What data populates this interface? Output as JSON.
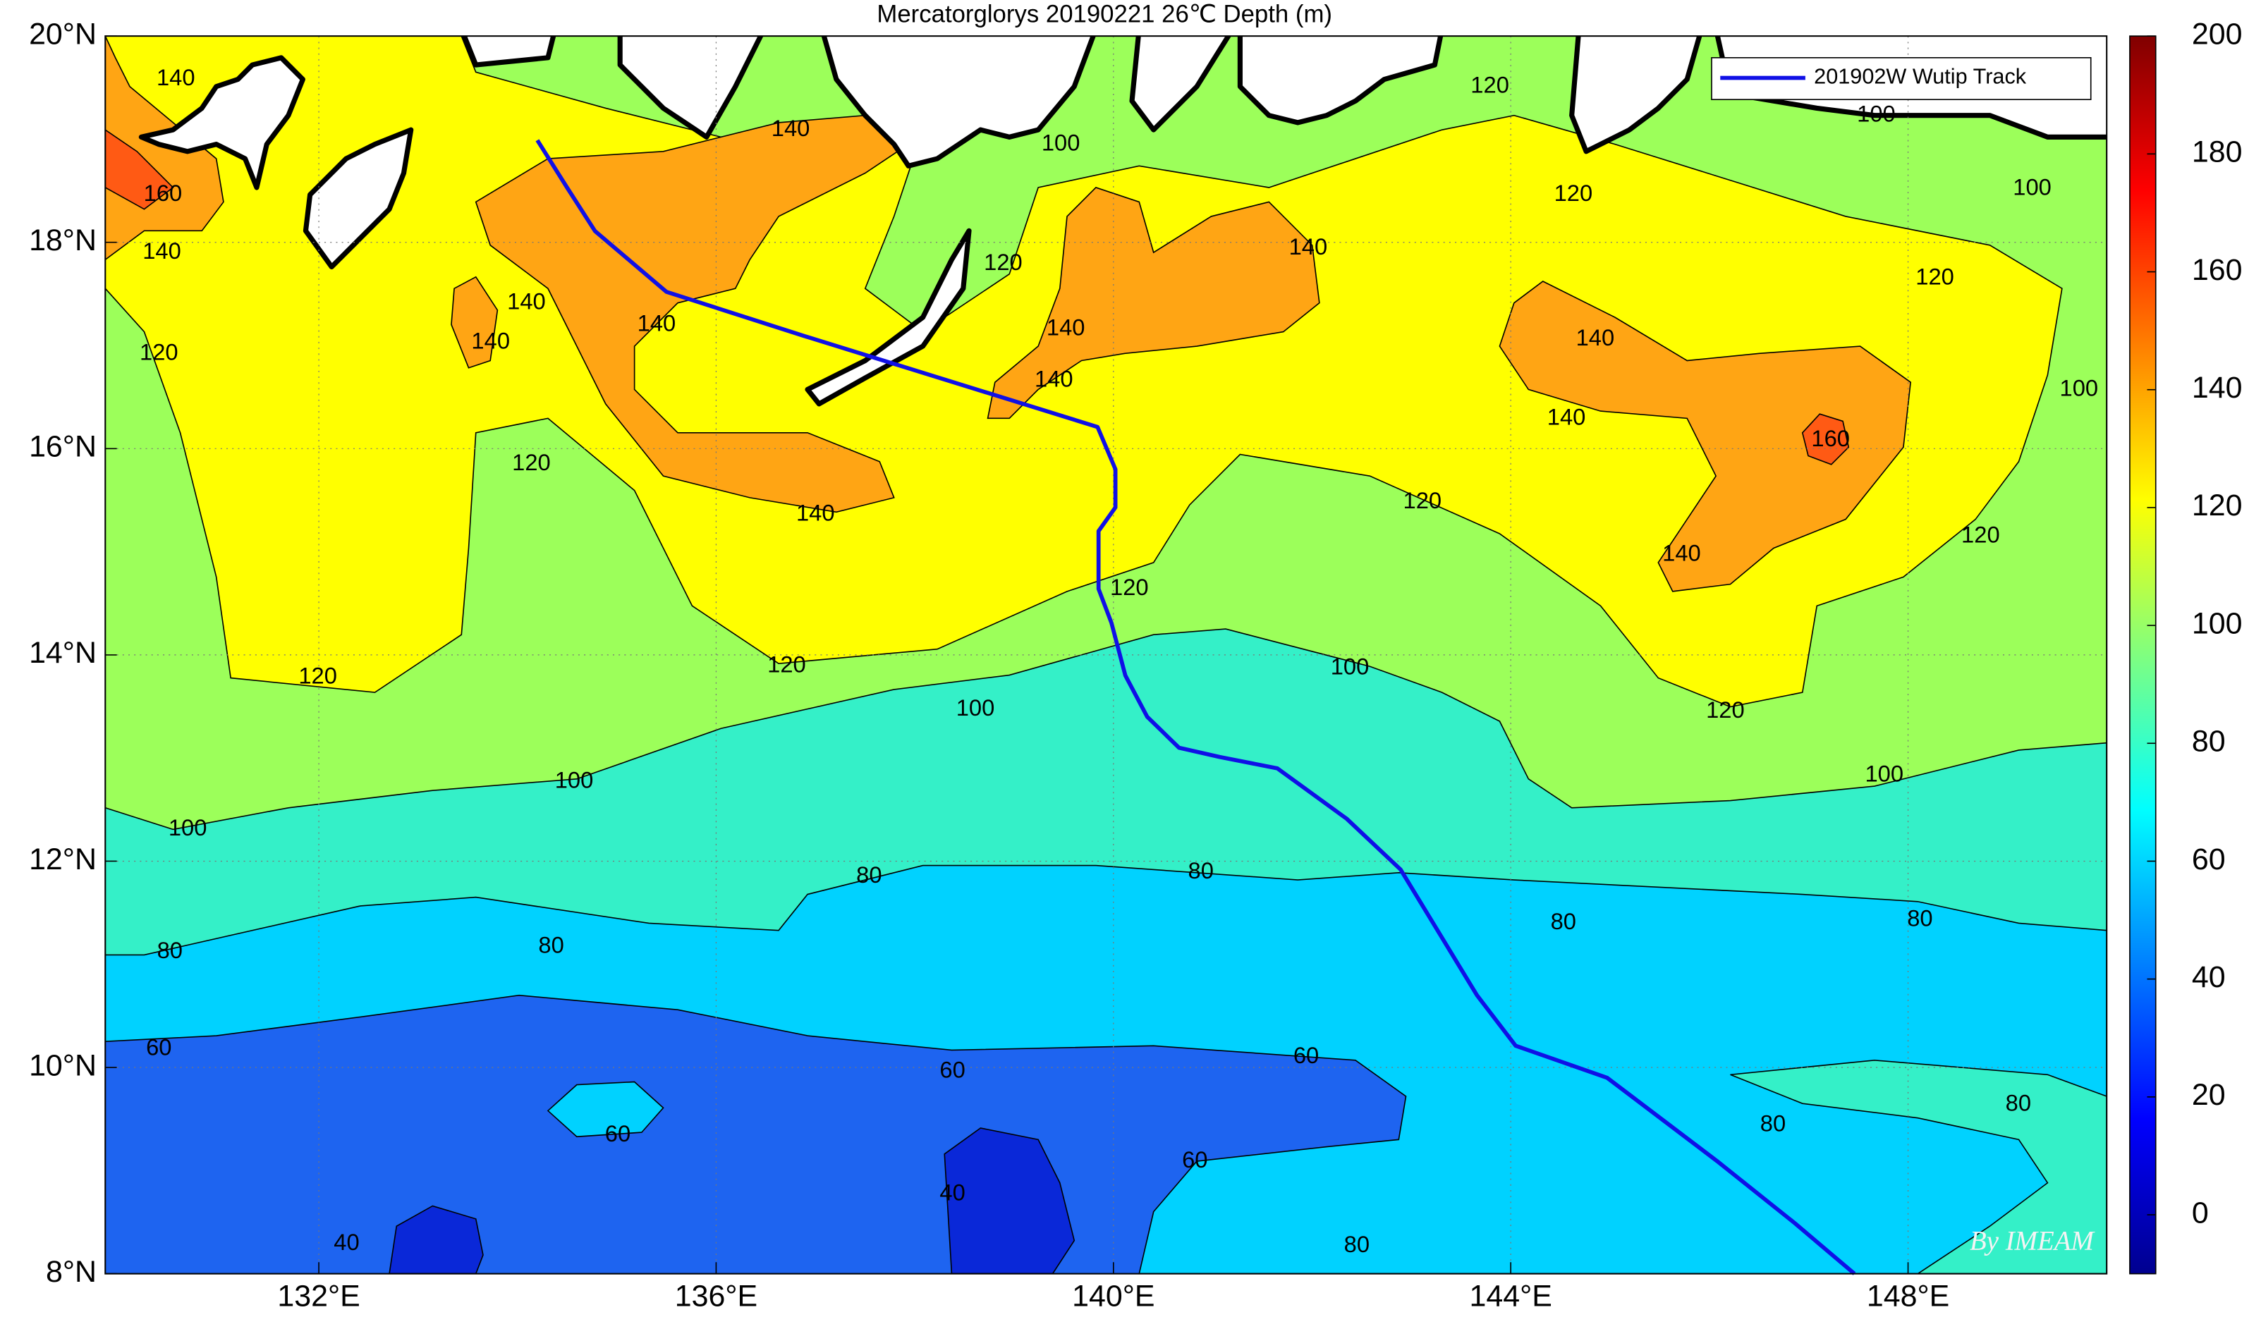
{
  "chart_data": {
    "type": "map",
    "title": "Mercatorglorys 20190221 26℃ Depth (m)",
    "xlim": [
      129.85,
      150
    ],
    "ylim": [
      8,
      20
    ],
    "xticks": [
      {
        "value": 132,
        "label": "132°E"
      },
      {
        "value": 136,
        "label": "136°E"
      },
      {
        "value": 140,
        "label": "140°E"
      },
      {
        "value": 144,
        "label": "144°E"
      },
      {
        "value": 148,
        "label": "148°E"
      }
    ],
    "yticks": [
      {
        "value": 8,
        "label": "8°N"
      },
      {
        "value": 10,
        "label": "10°N"
      },
      {
        "value": 12,
        "label": "12°N"
      },
      {
        "value": 14,
        "label": "14°N"
      },
      {
        "value": 16,
        "label": "16°N"
      },
      {
        "value": 18,
        "label": "18°N"
      },
      {
        "value": 20,
        "label": "20°N"
      }
    ],
    "grid": true,
    "colorbar": {
      "colormap": "jet",
      "clim": [
        -10,
        200
      ],
      "ticks": [
        0,
        20,
        40,
        60,
        80,
        100,
        120,
        140,
        160,
        180,
        200
      ]
    },
    "legend": "northeast",
    "series": [
      {
        "name": "201902W Wutip Track",
        "color": "#1010e6",
        "x": [
          134.2,
          134.5,
          134.78,
          135.5,
          136.86,
          139.84,
          140.02,
          140.02,
          139.85,
          139.85,
          139.98,
          140.12,
          140.34,
          140.66,
          141.07,
          141.65,
          142.35,
          142.89,
          143.66,
          144.05,
          144.97,
          146.08,
          146.86,
          147.46
        ],
        "values": [
          18.99,
          18.53,
          18.11,
          17.52,
          17.1,
          16.21,
          15.8,
          15.43,
          15.2,
          14.64,
          14.31,
          13.8,
          13.4,
          13.1,
          13.01,
          12.9,
          12.41,
          11.92,
          10.7,
          10.21,
          9.9,
          9.09,
          8.49,
          8.0
        ]
      }
    ],
    "contour_labels": [
      {
        "lon": 130.56,
        "lat": 19.58,
        "value": 140
      },
      {
        "lon": 130.42,
        "lat": 17.9,
        "value": 140
      },
      {
        "lon": 130.43,
        "lat": 18.46,
        "value": 160
      },
      {
        "lon": 130.39,
        "lat": 16.92,
        "value": 120
      },
      {
        "lon": 131.99,
        "lat": 13.78,
        "value": 120
      },
      {
        "lon": 130.68,
        "lat": 12.31,
        "value": 100
      },
      {
        "lon": 130.5,
        "lat": 11.12,
        "value": 80
      },
      {
        "lon": 130.39,
        "lat": 10.18,
        "value": 60
      },
      {
        "lon": 132.28,
        "lat": 8.29,
        "value": 40
      },
      {
        "lon": 135.01,
        "lat": 9.34,
        "value": 60
      },
      {
        "lon": 134.34,
        "lat": 11.17,
        "value": 80
      },
      {
        "lon": 134.57,
        "lat": 12.77,
        "value": 100
      },
      {
        "lon": 134.14,
        "lat": 15.85,
        "value": 120
      },
      {
        "lon": 133.73,
        "lat": 17.03,
        "value": 140
      },
      {
        "lon": 134.09,
        "lat": 17.41,
        "value": 140
      },
      {
        "lon": 135.4,
        "lat": 17.2,
        "value": 140
      },
      {
        "lon": 136.75,
        "lat": 19.09,
        "value": 140
      },
      {
        "lon": 137.0,
        "lat": 15.36,
        "value": 140
      },
      {
        "lon": 136.71,
        "lat": 13.89,
        "value": 120
      },
      {
        "lon": 138.61,
        "lat": 13.47,
        "value": 100
      },
      {
        "lon": 137.54,
        "lat": 11.85,
        "value": 80
      },
      {
        "lon": 138.38,
        "lat": 9.96,
        "value": 60
      },
      {
        "lon": 140.82,
        "lat": 9.09,
        "value": 60
      },
      {
        "lon": 142.45,
        "lat": 8.27,
        "value": 80
      },
      {
        "lon": 141.94,
        "lat": 10.1,
        "value": 60
      },
      {
        "lon": 138.38,
        "lat": 8.77,
        "value": 40
      },
      {
        "lon": 140.16,
        "lat": 14.64,
        "value": 120
      },
      {
        "lon": 139.4,
        "lat": 16.66,
        "value": 140
      },
      {
        "lon": 139.52,
        "lat": 17.16,
        "value": 140
      },
      {
        "lon": 138.89,
        "lat": 17.79,
        "value": 120
      },
      {
        "lon": 141.96,
        "lat": 17.94,
        "value": 140
      },
      {
        "lon": 140.88,
        "lat": 11.89,
        "value": 80
      },
      {
        "lon": 142.38,
        "lat": 13.87,
        "value": 100
      },
      {
        "lon": 143.11,
        "lat": 15.48,
        "value": 120
      },
      {
        "lon": 144.63,
        "lat": 18.46,
        "value": 120
      },
      {
        "lon": 144.56,
        "lat": 16.29,
        "value": 140
      },
      {
        "lon": 144.85,
        "lat": 17.06,
        "value": 140
      },
      {
        "lon": 146.16,
        "lat": 13.45,
        "value": 120
      },
      {
        "lon": 147.76,
        "lat": 12.83,
        "value": 100
      },
      {
        "lon": 144.53,
        "lat": 11.4,
        "value": 80
      },
      {
        "lon": 148.12,
        "lat": 11.43,
        "value": 80
      },
      {
        "lon": 149.11,
        "lat": 9.64,
        "value": 80
      },
      {
        "lon": 146.64,
        "lat": 9.44,
        "value": 80
      },
      {
        "lon": 148.27,
        "lat": 17.65,
        "value": 120
      },
      {
        "lon": 149.25,
        "lat": 18.52,
        "value": 100
      },
      {
        "lon": 149.72,
        "lat": 16.57,
        "value": 100
      },
      {
        "lon": 148.73,
        "lat": 15.15,
        "value": 120
      },
      {
        "lon": 147.22,
        "lat": 16.08,
        "value": 160
      },
      {
        "lon": 145.72,
        "lat": 14.97,
        "value": 140
      },
      {
        "lon": 143.79,
        "lat": 19.51,
        "value": 120
      },
      {
        "lon": 139.47,
        "lat": 18.95,
        "value": 100
      },
      {
        "lon": 147.68,
        "lat": 19.23,
        "value": 100
      }
    ],
    "watermark": "By IMEAM"
  }
}
